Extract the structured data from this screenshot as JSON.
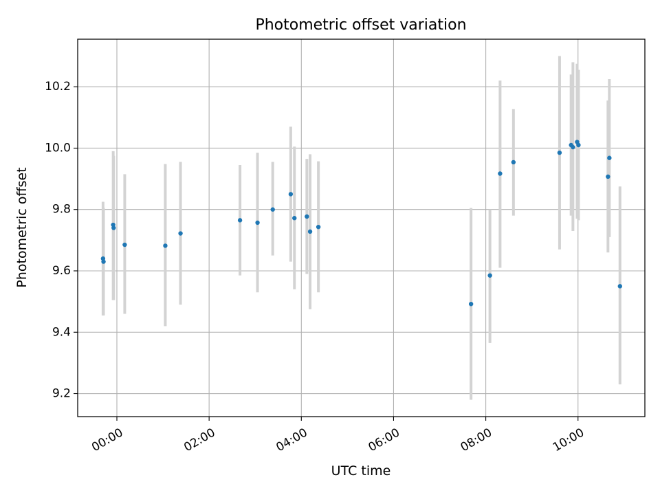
{
  "chart_data": {
    "type": "scatter",
    "title": "Photometric offset variation",
    "xlabel": "UTC time",
    "ylabel": "Photometric offset",
    "x_unit": "hours UTC (clock time)",
    "xlim": [
      -0.85,
      11.45
    ],
    "ylim": [
      9.125,
      10.355
    ],
    "xticks": [
      {
        "value": 0,
        "label": "00:00"
      },
      {
        "value": 2,
        "label": "02:00"
      },
      {
        "value": 4,
        "label": "04:00"
      },
      {
        "value": 6,
        "label": "06:00"
      },
      {
        "value": 8,
        "label": "08:00"
      },
      {
        "value": 10,
        "label": "10:00"
      }
    ],
    "yticks": [
      {
        "value": 9.2,
        "label": "9.2"
      },
      {
        "value": 9.4,
        "label": "9.4"
      },
      {
        "value": 9.6,
        "label": "9.6"
      },
      {
        "value": 9.8,
        "label": "9.8"
      },
      {
        "value": 10.0,
        "label": "10.0"
      },
      {
        "value": 10.2,
        "label": "10.2"
      }
    ],
    "grid": true,
    "marker_color": "#1f77b4",
    "errorbar_color": "#d3d3d3",
    "points": [
      {
        "x": -0.3,
        "y": 9.64,
        "lo": 9.455,
        "hi": 9.825
      },
      {
        "x": -0.29,
        "y": 9.63,
        "lo": 9.455,
        "hi": 9.805
      },
      {
        "x": -0.08,
        "y": 9.75,
        "lo": 9.505,
        "hi": 9.99
      },
      {
        "x": -0.07,
        "y": 9.74,
        "lo": 9.505,
        "hi": 9.975
      },
      {
        "x": 0.17,
        "y": 9.685,
        "lo": 9.46,
        "hi": 9.915
      },
      {
        "x": 1.05,
        "y": 9.682,
        "lo": 9.42,
        "hi": 9.948
      },
      {
        "x": 1.38,
        "y": 9.722,
        "lo": 9.49,
        "hi": 9.955
      },
      {
        "x": 2.67,
        "y": 9.765,
        "lo": 9.585,
        "hi": 9.945
      },
      {
        "x": 3.05,
        "y": 9.757,
        "lo": 9.53,
        "hi": 9.985
      },
      {
        "x": 3.38,
        "y": 9.8,
        "lo": 9.65,
        "hi": 9.955
      },
      {
        "x": 3.77,
        "y": 9.85,
        "lo": 9.63,
        "hi": 10.07
      },
      {
        "x": 3.85,
        "y": 9.772,
        "lo": 9.54,
        "hi": 10.005
      },
      {
        "x": 4.12,
        "y": 9.777,
        "lo": 9.59,
        "hi": 9.965
      },
      {
        "x": 4.19,
        "y": 9.728,
        "lo": 9.475,
        "hi": 9.98
      },
      {
        "x": 4.37,
        "y": 9.743,
        "lo": 9.53,
        "hi": 9.957
      },
      {
        "x": 7.68,
        "y": 9.492,
        "lo": 9.18,
        "hi": 9.805
      },
      {
        "x": 8.09,
        "y": 9.585,
        "lo": 9.365,
        "hi": 9.8
      },
      {
        "x": 8.31,
        "y": 9.917,
        "lo": 9.61,
        "hi": 10.22
      },
      {
        "x": 8.6,
        "y": 9.954,
        "lo": 9.78,
        "hi": 10.127
      },
      {
        "x": 9.6,
        "y": 9.985,
        "lo": 9.67,
        "hi": 10.3
      },
      {
        "x": 9.85,
        "y": 10.01,
        "lo": 9.78,
        "hi": 10.24
      },
      {
        "x": 9.89,
        "y": 10.003,
        "lo": 9.73,
        "hi": 10.28
      },
      {
        "x": 9.98,
        "y": 10.02,
        "lo": 9.77,
        "hi": 10.275
      },
      {
        "x": 10.01,
        "y": 10.01,
        "lo": 9.765,
        "hi": 10.255
      },
      {
        "x": 10.65,
        "y": 9.907,
        "lo": 9.66,
        "hi": 10.155
      },
      {
        "x": 10.68,
        "y": 9.968,
        "lo": 9.71,
        "hi": 10.225
      },
      {
        "x": 10.91,
        "y": 9.55,
        "lo": 9.23,
        "hi": 9.875
      }
    ]
  }
}
